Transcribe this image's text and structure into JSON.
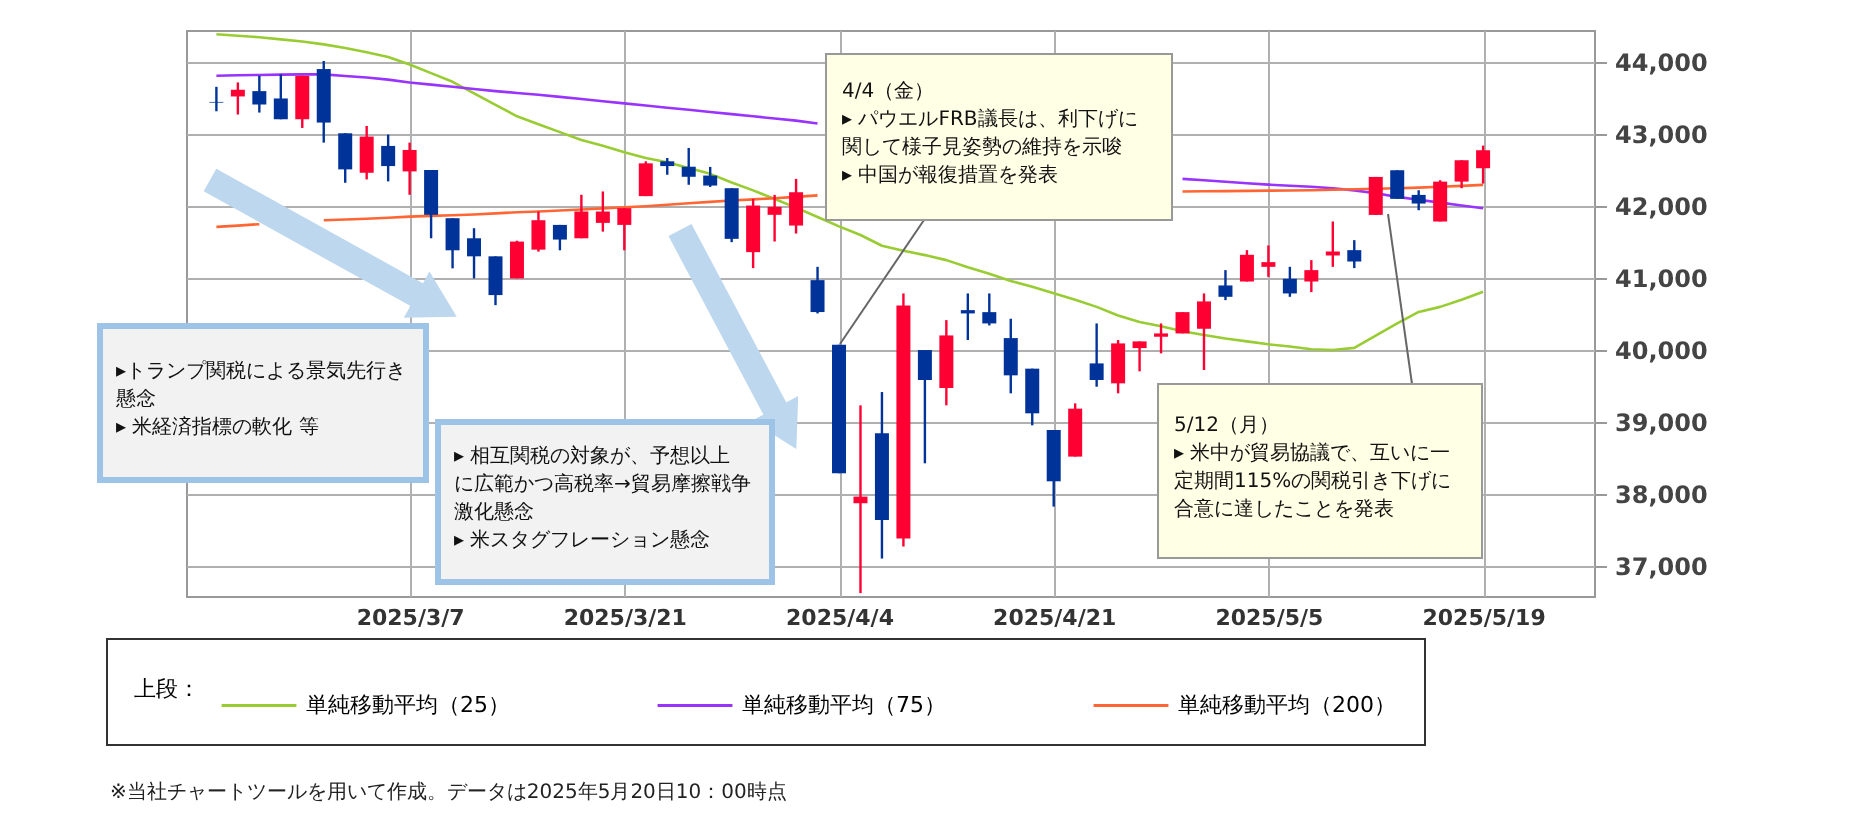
{
  "chart_data": {
    "type": "candlestick",
    "categories": [
      null,
      null,
      null,
      null,
      null,
      null,
      null,
      null,
      null,
      "2025/3/7",
      null,
      null,
      null,
      null,
      null,
      null,
      null,
      null,
      null,
      "2025/3/21",
      null,
      null,
      null,
      null,
      null,
      null,
      null,
      null,
      null,
      "2025/4/4",
      null,
      null,
      null,
      null,
      null,
      null,
      null,
      null,
      null,
      "2025/4/21",
      null,
      null,
      null,
      null,
      null,
      null,
      null,
      null,
      null,
      "2025/5/5",
      null,
      null,
      null,
      null,
      null,
      null,
      null,
      null,
      null,
      "2025/5/19"
    ],
    "ohlc": [
      [
        43450,
        43660,
        43320,
        43440
      ],
      [
        43526,
        43721,
        43275,
        43619
      ],
      [
        43600,
        43814,
        43302,
        43414
      ],
      [
        43498,
        43833,
        43209,
        43209
      ],
      [
        43209,
        43814,
        43088,
        43814
      ],
      [
        43907,
        44019,
        42884,
        43163
      ],
      [
        43014,
        43014,
        42326,
        42512
      ],
      [
        42465,
        43116,
        42372,
        42968
      ],
      [
        42838,
        42996,
        42345,
        42558
      ],
      [
        42484,
        42884,
        42159,
        42782
      ],
      [
        42503,
        42503,
        41554,
        41880
      ],
      [
        41833,
        41833,
        41136,
        41387
      ],
      [
        41554,
        41694,
        40996,
        41303
      ],
      [
        41303,
        41303,
        40624,
        40764
      ],
      [
        40996,
        41520,
        40996,
        41508
      ],
      [
        41396,
        41926,
        41368,
        41805
      ],
      [
        41740,
        41740,
        41387,
        41536
      ],
      [
        41554,
        42159,
        41554,
        41926
      ],
      [
        41768,
        42205,
        41647,
        41926
      ],
      [
        41740,
        41973,
        41387,
        41973
      ],
      [
        42140,
        42624,
        42140,
        42596
      ],
      [
        42624,
        42670,
        42437,
        42558
      ],
      [
        42549,
        42810,
        42298,
        42409
      ],
      [
        42426,
        42546,
        42268,
        42287
      ],
      [
        42250,
        42250,
        41500,
        41546
      ],
      [
        41361,
        42102,
        41139,
        42009
      ],
      [
        41880,
        42157,
        41509,
        41991
      ],
      [
        41731,
        42380,
        41620,
        42194
      ],
      [
        40972,
        41157,
        40509,
        40528
      ],
      [
        40074,
        40074,
        38287,
        38287
      ],
      [
        37870,
        39231,
        36620,
        37962
      ],
      [
        38842,
        39416,
        37101,
        37638
      ],
      [
        37379,
        40787,
        37268,
        40620
      ],
      [
        40000,
        40000,
        38425,
        39583
      ],
      [
        39472,
        40416,
        39231,
        40203
      ],
      [
        40555,
        40787,
        40139,
        40509
      ],
      [
        40527,
        40787,
        40342,
        40370
      ],
      [
        40166,
        40435,
        39398,
        39648
      ],
      [
        39741,
        39741,
        38953,
        39120
      ],
      [
        38888,
        38888,
        37823,
        38175
      ],
      [
        38518,
        39259,
        38518,
        39185
      ],
      [
        39814,
        40370,
        39490,
        39583
      ],
      [
        39537,
        40139,
        39398,
        40092
      ],
      [
        40027,
        40120,
        39704,
        40120
      ],
      [
        40185,
        40370,
        39954,
        40231
      ],
      [
        40231,
        40527,
        40231,
        40527
      ],
      [
        40296,
        40787,
        39722,
        40676
      ],
      [
        40898,
        41111,
        40694,
        40740
      ],
      [
        40953,
        41389,
        40953,
        41324
      ],
      [
        41157,
        41454,
        41018,
        41222
      ],
      [
        40991,
        41157,
        40740,
        40787
      ],
      [
        40953,
        41250,
        40805,
        41111
      ],
      [
        41315,
        41787,
        41157,
        41370
      ],
      [
        41389,
        41528,
        41139,
        41231
      ],
      [
        41879,
        42407,
        41879,
        42407
      ],
      [
        42500,
        42500,
        42102,
        42102
      ],
      [
        42157,
        42222,
        41944,
        42037
      ],
      [
        41787,
        42361,
        41787,
        42342
      ],
      [
        42342,
        42639,
        42250,
        42639
      ],
      [
        42528,
        42843,
        42315,
        42778
      ]
    ],
    "colors": [
      "#003399",
      "#ff0033",
      "#003399",
      "#003399",
      "#ff0033",
      "#003399",
      "#003399",
      "#ff0033",
      "#003399",
      "#ff0033",
      "#003399",
      "#003399",
      "#003399",
      "#003399",
      "#ff0033",
      "#ff0033",
      "#003399",
      "#ff0033",
      "#ff0033",
      "#ff0033",
      "#ff0033",
      "#003399",
      "#003399",
      "#003399",
      "#003399",
      "#ff0033",
      "#ff0033",
      "#ff0033",
      "#003399",
      "#003399",
      "#ff0033",
      "#003399",
      "#ff0033",
      "#003399",
      "#ff0033",
      "#003399",
      "#003399",
      "#003399",
      "#003399",
      "#003399",
      "#ff0033",
      "#003399",
      "#ff0033",
      "#ff0033",
      "#ff0033",
      "#ff0033",
      "#ff0033",
      "#003399",
      "#ff0033",
      "#ff0033",
      "#003399",
      "#ff0033",
      "#ff0033",
      "#003399",
      "#ff0033",
      "#003399",
      "#003399",
      "#ff0033",
      "#ff0033",
      "#ff0033"
    ],
    "series": [
      {
        "name": "単純移動平均（25）",
        "type": "line",
        "color": "#99cc33",
        "values": [
          44390,
          44370,
          44350,
          44320,
          44290,
          44250,
          44200,
          44140,
          44075,
          43970,
          43850,
          43730,
          43570,
          43410,
          43250,
          43140,
          43030,
          42920,
          42840,
          42750,
          42670,
          42610,
          42530,
          42450,
          42330,
          42220,
          42100,
          41980,
          41850,
          41720,
          41600,
          41450,
          41380,
          41320,
          41250,
          41150,
          41060,
          40960,
          40880,
          40790,
          40700,
          40600,
          40480,
          40390,
          40330,
          40260,
          40210,
          40160,
          40120,
          40080,
          40050,
          40010,
          40000,
          40030,
          40200,
          40370,
          40530,
          40600,
          40700,
          40810
        ]
      },
      {
        "name": "単純移動平均（75）",
        "type": "line",
        "color": "#9933ff",
        "values": [
          43814,
          43820,
          43825,
          43830,
          43833,
          43833,
          43810,
          43790,
          43760,
          43720,
          43690,
          43660,
          43630,
          43600,
          43575,
          43550,
          43520,
          43490,
          43460,
          43430,
          43400,
          43370,
          43340,
          43310,
          43280,
          43250,
          43220,
          43190,
          43150,
          null,
          null,
          null,
          null,
          null,
          null,
          null,
          null,
          null,
          null,
          null,
          null,
          null,
          null,
          null,
          null,
          42380,
          42360,
          42340,
          42320,
          42300,
          42285,
          42270,
          42250,
          42220,
          42180,
          42130,
          42090,
          42050,
          42010,
          41972
        ]
      },
      {
        "name": "単純移動平均（200）",
        "type": "line",
        "color": "#ff6633",
        "values": [
          41712,
          41730,
          41750,
          null,
          null,
          41805,
          41815,
          41825,
          41840,
          41855,
          41865,
          41875,
          41885,
          41900,
          41915,
          41926,
          41940,
          41955,
          41970,
          41985,
          42000,
          42020,
          42040,
          42060,
          42080,
          42095,
          42110,
          42130,
          42150,
          null,
          null,
          null,
          null,
          null,
          null,
          null,
          null,
          null,
          null,
          null,
          null,
          null,
          null,
          null,
          null,
          42204,
          42207,
          42210,
          42213,
          42216,
          42219,
          42222,
          42228,
          42235,
          42243,
          42250,
          42258,
          42270,
          42283,
          42296
        ]
      }
    ],
    "ylim": [
      36580,
      44450
    ],
    "yticks": [
      {
        "value": 37000,
        "label": "37,000"
      },
      {
        "value": 38000,
        "label": "38,000"
      },
      {
        "value": 39000,
        "label": "39,000"
      },
      {
        "value": 40000,
        "label": "40,000"
      },
      {
        "value": 41000,
        "label": "41,000"
      },
      {
        "value": 42000,
        "label": "42,000"
      },
      {
        "value": 43000,
        "label": "43,000"
      },
      {
        "value": 44000,
        "label": "44,000"
      }
    ],
    "grid": true,
    "legend": "bottom",
    "legend_title": "上段：",
    "annotations": [
      "4/4（金）\n▸ パウエルFRB議長は、利下げに関して様子見姿勢の維持を示唆\n▸ 中国が報復措置を発表",
      "5/12（月）\n▸ 米中が貿易協議で、互いに一定期間115%の関税引き下げに合意に達したことを発表",
      "▸トランプ関税による景気先行き懸念\n▸ 米経済指標の軟化 等",
      "▸ 相互関税の対象が、予想以上に広範かつ高税率→貿易摩擦戦争激化懸念\n▸ 米スタグフレーション懸念",
      "※当社チャートツールを用いて作成。データは2025年5月20日10：00時点"
    ]
  }
}
